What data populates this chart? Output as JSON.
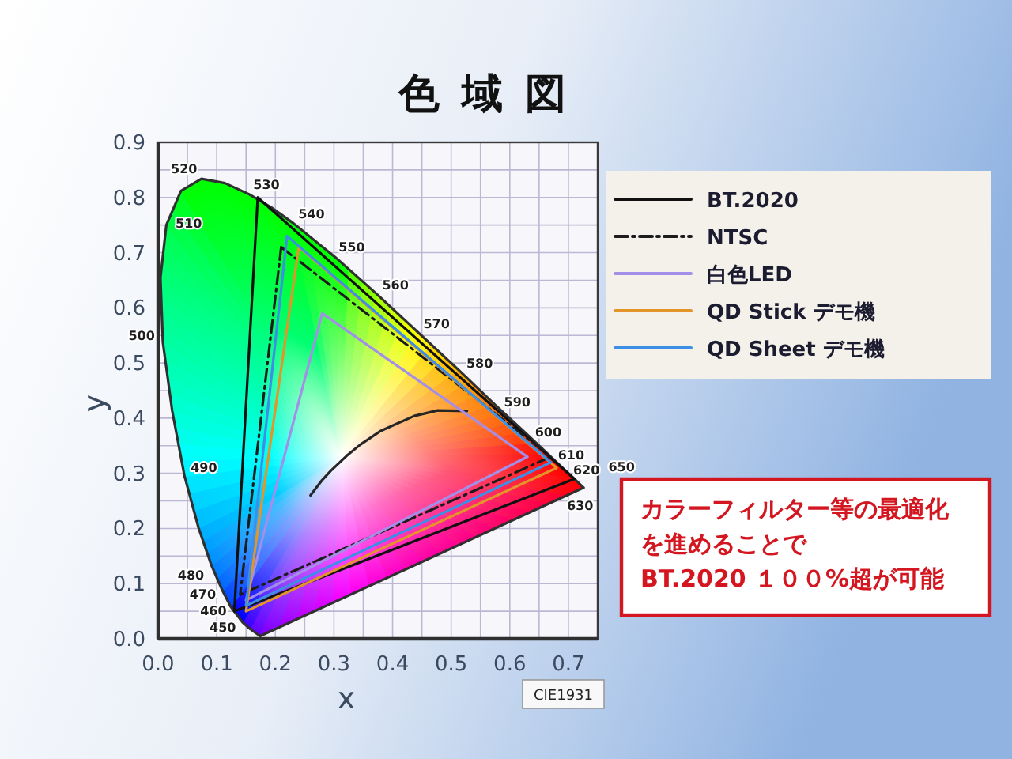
{
  "chart_data": {
    "type": "line",
    "title": "色域図",
    "xlabel": "x",
    "ylabel": "y",
    "xlim": [
      0,
      0.75
    ],
    "ylim": [
      0,
      0.9
    ],
    "xticks": [
      {
        "value": 0,
        "label": "0.0"
      },
      {
        "value": 0.05,
        "label": null
      },
      {
        "value": 0.1,
        "label": "0.1"
      },
      {
        "value": 0.15,
        "label": null
      },
      {
        "value": 0.2,
        "label": "0.2"
      },
      {
        "value": 0.25,
        "label": null
      },
      {
        "value": 0.3,
        "label": "0.3"
      },
      {
        "value": 0.35,
        "label": null
      },
      {
        "value": 0.4,
        "label": "0.4"
      },
      {
        "value": 0.45,
        "label": null
      },
      {
        "value": 0.5,
        "label": "0.5"
      },
      {
        "value": 0.55,
        "label": null
      },
      {
        "value": 0.6,
        "label": "0.6"
      },
      {
        "value": 0.65,
        "label": null
      },
      {
        "value": 0.7,
        "label": "0.7"
      }
    ],
    "yticks": [
      {
        "value": 0,
        "label": "0.0"
      },
      {
        "value": 0.05,
        "label": null
      },
      {
        "value": 0.1,
        "label": "0.1"
      },
      {
        "value": 0.15,
        "label": null
      },
      {
        "value": 0.2,
        "label": "0.2"
      },
      {
        "value": 0.25,
        "label": null
      },
      {
        "value": 0.3,
        "label": "0.3"
      },
      {
        "value": 0.35,
        "label": null
      },
      {
        "value": 0.4,
        "label": "0.4"
      },
      {
        "value": 0.45,
        "label": null
      },
      {
        "value": 0.5,
        "label": "0.5"
      },
      {
        "value": 0.55,
        "label": null
      },
      {
        "value": 0.6,
        "label": "0.6"
      },
      {
        "value": 0.65,
        "label": null
      },
      {
        "value": 0.7,
        "label": "0.7"
      },
      {
        "value": 0.75,
        "label": null
      },
      {
        "value": 0.8,
        "label": "0.8"
      },
      {
        "value": 0.85,
        "label": null
      },
      {
        "value": 0.9,
        "label": "0.9"
      }
    ],
    "grid": true,
    "legend": "right",
    "series": [
      {
        "color": "#303030",
        "x": [
          0.174,
          0.157,
          0.144,
          0.124,
          0.11,
          0.091,
          0.069,
          0.045,
          0.024,
          0.008,
          0.004,
          0.014,
          0.039,
          0.074,
          0.114,
          0.155,
          0.193,
          0.23,
          0.302,
          0.373,
          0.444,
          0.513,
          0.575,
          0.627,
          0.666,
          0.692,
          0.708,
          0.726,
          0.174
        ],
        "values": [
          0.005,
          0.018,
          0.03,
          0.058,
          0.087,
          0.133,
          0.201,
          0.295,
          0.413,
          0.538,
          0.655,
          0.75,
          0.812,
          0.834,
          0.826,
          0.806,
          0.782,
          0.754,
          0.692,
          0.625,
          0.555,
          0.487,
          0.424,
          0.373,
          0.334,
          0.308,
          0.292,
          0.274,
          0.005
        ]
      },
      {
        "color": "#262626",
        "x": [
          0.26,
          0.28,
          0.295,
          0.322,
          0.345,
          0.38,
          0.437,
          0.477,
          0.527
        ],
        "values": [
          0.26,
          0.288,
          0.305,
          0.332,
          0.352,
          0.377,
          0.404,
          0.414,
          0.413
        ]
      },
      {
        "name": "BT.2020",
        "color": "#111111",
        "x": [
          0.17,
          0.71,
          0.13,
          0.17
        ],
        "values": [
          0.8,
          0.29,
          0.05,
          0.8
        ]
      },
      {
        "name": "NTSC",
        "color": "#1c1c1c",
        "line_style": "dashdot",
        "x": [
          0.21,
          0.67,
          0.14,
          0.21
        ],
        "values": [
          0.71,
          0.33,
          0.08,
          0.71
        ]
      },
      {
        "name": "白色LED",
        "color": "#a48fe8",
        "x": [
          0.28,
          0.63,
          0.15,
          0.28
        ],
        "values": [
          0.59,
          0.33,
          0.07,
          0.59
        ]
      },
      {
        "name": "QD Stick デモ機",
        "color": "#e3952a",
        "x": [
          0.24,
          0.68,
          0.15,
          0.24
        ],
        "values": [
          0.71,
          0.31,
          0.05,
          0.71
        ]
      },
      {
        "name": "QD Sheet デモ機",
        "color": "#3d8fe6",
        "x": [
          0.22,
          0.67,
          0.15,
          0.22
        ],
        "values": [
          0.73,
          0.32,
          0.06,
          0.73
        ]
      }
    ],
    "annotations": [
      {
        "text": "450",
        "x": 0.157,
        "y": 0.018
      },
      {
        "text": "460",
        "x": 0.144,
        "y": 0.03
      },
      {
        "text": "470",
        "x": 0.124,
        "y": 0.058
      },
      {
        "text": "480",
        "x": 0.091,
        "y": 0.133
      },
      {
        "text": "490",
        "x": 0.045,
        "y": 0.295
      },
      {
        "text": "500",
        "x": 0.008,
        "y": 0.538
      },
      {
        "text": "510",
        "x": 0.014,
        "y": 0.75
      },
      {
        "text": "520",
        "x": 0.074,
        "y": 0.834
      },
      {
        "text": "530",
        "x": 0.155,
        "y": 0.806
      },
      {
        "text": "540",
        "x": 0.23,
        "y": 0.754
      },
      {
        "text": "550",
        "x": 0.302,
        "y": 0.692
      },
      {
        "text": "560",
        "x": 0.373,
        "y": 0.625
      },
      {
        "text": "570",
        "x": 0.444,
        "y": 0.555
      },
      {
        "text": "580",
        "x": 0.513,
        "y": 0.487
      },
      {
        "text": "590",
        "x": 0.575,
        "y": 0.424
      },
      {
        "text": "600",
        "x": 0.627,
        "y": 0.373
      },
      {
        "text": "610",
        "x": 0.666,
        "y": 0.334
      },
      {
        "text": "620",
        "x": 0.692,
        "y": 0.308
      },
      {
        "text": "630",
        "x": 0.708,
        "y": 0.292
      },
      {
        "text": "650",
        "x": 0.726,
        "y": 0.274
      },
      "CIE1931",
      "カラーフィルター等の最適化を進めることでBT.2020 １００%超が可能"
    ]
  }
}
